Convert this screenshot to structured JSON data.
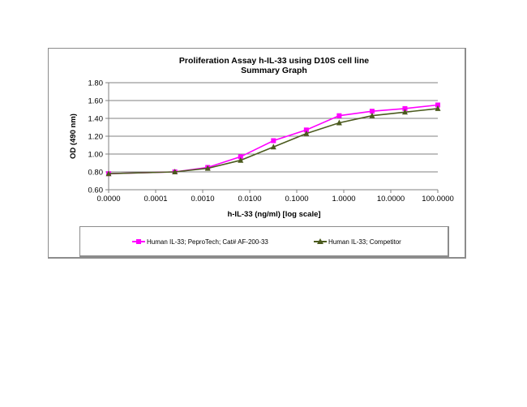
{
  "chart_data": {
    "type": "line",
    "title": "Proliferation Assay h-IL-33 using D10S cell line",
    "subtitle": "Summary Graph",
    "xlabel": "h-IL-33 (ng/ml) [log scale]",
    "ylabel": "OD (490 nm)",
    "x_scale": "log",
    "x_tick_labels": [
      "0.0000",
      "0.0001",
      "0.0010",
      "0.0100",
      "0.1000",
      "1.0000",
      "10.0000",
      "100.0000"
    ],
    "y_tick_labels": [
      "1.80",
      "1.60",
      "1.40",
      "1.20",
      "1.00",
      "0.80",
      "0.60"
    ],
    "ylim": [
      0.6,
      1.8
    ],
    "grid": "horizontal",
    "legend_position": "bottom",
    "x": [
      0,
      0.000256,
      0.00128,
      0.0064,
      0.032,
      0.16,
      0.8,
      4,
      20,
      100
    ],
    "series": [
      {
        "name": "Human IL-33; PeproTech; Cat# AF-200-33",
        "color": "#ff00ff",
        "marker": "square",
        "values": [
          0.78,
          0.8,
          0.85,
          0.97,
          1.15,
          1.27,
          1.43,
          1.48,
          1.51,
          1.55
        ]
      },
      {
        "name": "Human IL-33; Competitor",
        "color": "#4b5a1e",
        "marker": "triangle",
        "values": [
          0.78,
          0.8,
          0.84,
          0.93,
          1.08,
          1.23,
          1.35,
          1.43,
          1.47,
          1.51
        ]
      }
    ]
  }
}
